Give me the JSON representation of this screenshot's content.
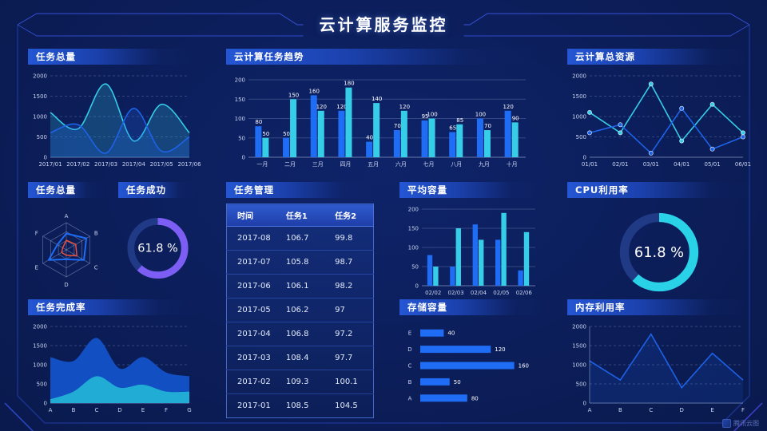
{
  "header": {
    "title": "云计算服务监控"
  },
  "watermark": {
    "text": "腾讯云图"
  },
  "colors": {
    "blue": "#1f6df5",
    "cyan": "#35cde8",
    "purple": "#7d5ef5",
    "red": "#e8503c",
    "frame": "#3b55e6"
  },
  "panels": {
    "task_total": {
      "title": "任务总量"
    },
    "task_trend": {
      "title": "云计算任务趋势"
    },
    "total_resources": {
      "title": "云计算总资源"
    },
    "task_radar": {
      "title": "任务总量"
    },
    "task_success": {
      "title": "任务成功"
    },
    "task_table": {
      "title": "任务管理"
    },
    "avg_capacity": {
      "title": "平均容量"
    },
    "cpu_usage": {
      "title": "CPU利用率"
    },
    "completion": {
      "title": "任务完成率"
    },
    "storage": {
      "title": "存储容量"
    },
    "memory": {
      "title": "内存利用率"
    }
  },
  "table": {
    "headers": [
      "时间",
      "任务1",
      "任务2"
    ],
    "rows": [
      [
        "2017-08",
        "106.7",
        "99.8"
      ],
      [
        "2017-07",
        "105.8",
        "98.7"
      ],
      [
        "2017-06",
        "106.1",
        "98.2"
      ],
      [
        "2017-05",
        "106.2",
        "97"
      ],
      [
        "2017-04",
        "106.8",
        "97.2"
      ],
      [
        "2017-03",
        "108.4",
        "97.7"
      ],
      [
        "2017-02",
        "109.3",
        "100.1"
      ],
      [
        "2017-01",
        "108.5",
        "104.5"
      ]
    ]
  },
  "chart_data": [
    {
      "id": "task_total",
      "type": "area",
      "title": "任务总量",
      "categories": [
        "2017/01",
        "2017/02",
        "2017/03",
        "2017/04",
        "2017/05",
        "2017/06"
      ],
      "series": [
        {
          "name": "cyan-series",
          "color": "#35cde8",
          "values": [
            1100,
            700,
            1800,
            400,
            1300,
            600
          ]
        },
        {
          "name": "blue-series",
          "color": "#1e62e8",
          "values": [
            600,
            800,
            100,
            1200,
            150,
            500
          ]
        }
      ],
      "ylim": [
        0,
        2000
      ],
      "yticks": [
        0,
        500,
        1000,
        1500,
        2000
      ],
      "grid": "dashed"
    },
    {
      "id": "task_trend",
      "type": "bar",
      "title": "云计算任务趋势",
      "categories": [
        "一月",
        "二月",
        "三月",
        "四月",
        "五月",
        "六月",
        "七月",
        "八月",
        "九月",
        "十月"
      ],
      "series": [
        {
          "name": "blue-series",
          "color": "#1f6df5",
          "values": [
            80,
            50,
            160,
            120,
            40,
            70,
            95,
            65,
            100,
            120
          ]
        },
        {
          "name": "cyan-series",
          "color": "#35cde8",
          "values": [
            50,
            150,
            120,
            180,
            140,
            120,
            100,
            85,
            70,
            90
          ]
        }
      ],
      "ylim": [
        0,
        200
      ],
      "yticks": [
        0,
        50,
        100,
        150,
        200
      ],
      "value_labels": true,
      "grid": "solid"
    },
    {
      "id": "total_resources",
      "type": "line",
      "title": "云计算总资源",
      "categories": [
        "01/01",
        "02/01",
        "03/01",
        "04/01",
        "05/01",
        "06/01"
      ],
      "series": [
        {
          "name": "cyan-series",
          "color": "#35cde8",
          "values": [
            1100,
            600,
            1800,
            400,
            1300,
            600
          ]
        },
        {
          "name": "blue-series",
          "color": "#1e62e8",
          "values": [
            600,
            800,
            100,
            1200,
            200,
            500
          ]
        }
      ],
      "ylim": [
        0,
        2000
      ],
      "yticks": [
        0,
        500,
        1000,
        1500,
        2000
      ],
      "markers": true,
      "grid": "dashed"
    },
    {
      "id": "task_radar",
      "type": "radar",
      "title": "任务总量",
      "axes": [
        "A",
        "B",
        "C",
        "D",
        "E",
        "F"
      ],
      "levels": 3,
      "max": 100,
      "series": [
        {
          "name": "blue-series",
          "color": "#1e6df5",
          "values": [
            60,
            85,
            75,
            35,
            75,
            38
          ]
        },
        {
          "name": "red-series",
          "color": "#e8503c",
          "values": [
            35,
            40,
            45,
            20,
            20,
            15
          ]
        }
      ]
    },
    {
      "id": "task_success",
      "type": "donut",
      "title": "任务成功",
      "value": 61.8,
      "label": "61.8 %",
      "color": "#7d5ef5"
    },
    {
      "id": "avg_capacity",
      "type": "bar",
      "title": "平均容量",
      "categories": [
        "02/02",
        "02/03",
        "02/04",
        "02/05",
        "02/06"
      ],
      "series": [
        {
          "name": "blue-series",
          "color": "#1f6df5",
          "values": [
            80,
            50,
            160,
            120,
            40
          ]
        },
        {
          "name": "cyan-series",
          "color": "#35cde8",
          "values": [
            50,
            150,
            120,
            190,
            140
          ]
        }
      ],
      "ylim": [
        0,
        200
      ],
      "yticks": [
        0,
        50,
        100,
        150,
        200
      ],
      "value_labels": false,
      "grid": "solid"
    },
    {
      "id": "cpu_usage",
      "type": "donut",
      "title": "CPU利用率",
      "value": 61.8,
      "label": "61.8 %",
      "color": "#2ad2e8"
    },
    {
      "id": "completion",
      "type": "sarea",
      "title": "任务完成率",
      "categories": [
        "A",
        "B",
        "C",
        "D",
        "E",
        "F",
        "G"
      ],
      "series": [
        {
          "name": "blue-series",
          "color": "#1b5ce0",
          "fill": "#1254cc",
          "values": [
            1200,
            1100,
            1700,
            900,
            1200,
            800,
            700
          ]
        },
        {
          "name": "cyan-series",
          "color": "#27c0dc",
          "fill": "#22b4d6",
          "values": [
            100,
            300,
            700,
            400,
            480,
            300,
            300
          ]
        }
      ],
      "ylim": [
        0,
        2000
      ],
      "yticks": [
        0,
        500,
        1000,
        1500,
        2000
      ],
      "grid": "dashed"
    },
    {
      "id": "storage",
      "type": "hbar",
      "title": "存储容量",
      "categories": [
        "E",
        "D",
        "C",
        "B",
        "A"
      ],
      "values": [
        40,
        120,
        160,
        50,
        80
      ],
      "color": "#1f6df5",
      "xmax": 170,
      "value_labels": true
    },
    {
      "id": "memory",
      "type": "line-area",
      "title": "内存利用率",
      "categories": [
        "A",
        "B",
        "C",
        "D",
        "E",
        "F"
      ],
      "values": [
        1100,
        600,
        1800,
        400,
        1300,
        600
      ],
      "color": "#1e62e8",
      "ylim": [
        0,
        2000
      ],
      "yticks": [
        0,
        500,
        1000,
        1500,
        2000
      ],
      "grid": "dashed"
    }
  ]
}
